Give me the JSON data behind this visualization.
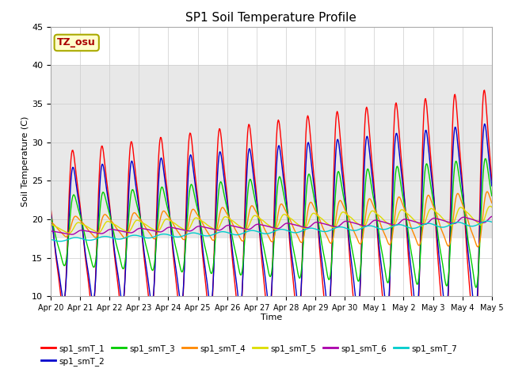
{
  "title": "SP1 Soil Temperature Profile",
  "xlabel": "Time",
  "ylabel": "Soil Temperature (C)",
  "ylim": [
    10,
    45
  ],
  "series_colors": {
    "sp1_smT_1": "#FF0000",
    "sp1_smT_2": "#0000CC",
    "sp1_smT_3": "#00CC00",
    "sp1_smT_4": "#FF8800",
    "sp1_smT_5": "#DDDD00",
    "sp1_smT_6": "#AA00AA",
    "sp1_smT_7": "#00CCCC"
  },
  "annotation_text": "TZ_osu",
  "annotation_color": "#AA0000",
  "annotation_bg": "#FFFFCC",
  "shaded_region": [
    17.5,
    40.0
  ],
  "shaded_color": "#E8E8E8",
  "xtick_labels": [
    "Apr 20",
    "Apr 21",
    "Apr 22",
    "Apr 23",
    "Apr 24",
    "Apr 25",
    "Apr 26",
    "Apr 27",
    "Apr 28",
    "Apr 29",
    "Apr 30",
    "May 1",
    "May 2",
    "May 3",
    "May 4",
    "May 5"
  ],
  "background_color": "#FFFFFF",
  "grid_color": "#CCCCCC",
  "n_days": 15,
  "hours_per_day": 48
}
